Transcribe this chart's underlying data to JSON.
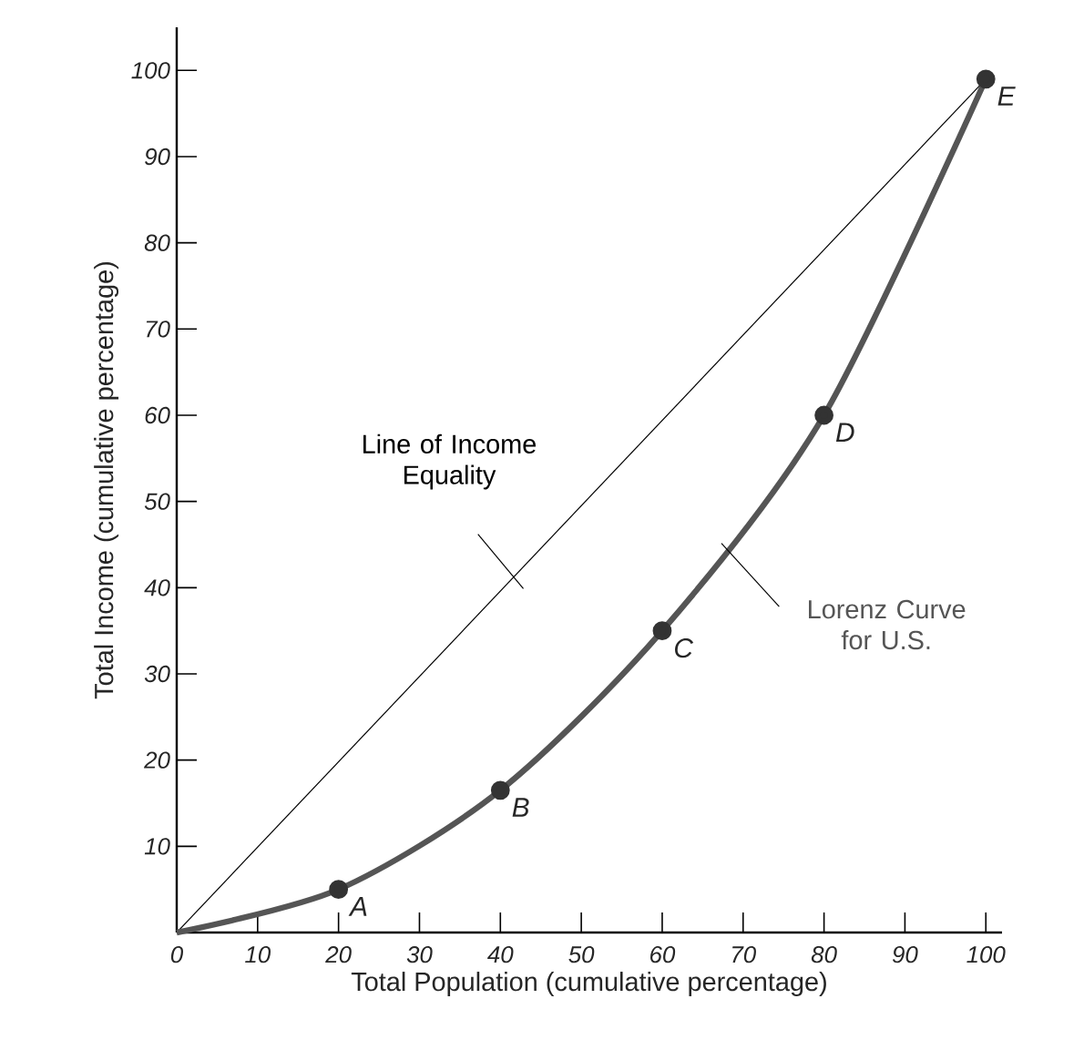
{
  "chart_data": {
    "type": "line",
    "xlabel": "Total Population (cumulative percentage)",
    "ylabel": "Total Income (cumulative percentage)",
    "xlim": [
      0,
      102
    ],
    "ylim": [
      0,
      105
    ],
    "xticks": [
      0,
      10,
      20,
      30,
      40,
      50,
      60,
      70,
      80,
      90,
      100
    ],
    "yticks": [
      10,
      20,
      30,
      40,
      50,
      60,
      70,
      80,
      90,
      100
    ],
    "series": [
      {
        "name": "Line of Income Equality",
        "color": "#000000",
        "x": [
          0,
          100
        ],
        "values": [
          0,
          99
        ]
      },
      {
        "name": "Lorenz Curve for U.S.",
        "color": "#555555",
        "x": [
          0,
          20,
          40,
          60,
          80,
          100
        ],
        "values": [
          0,
          5,
          16.5,
          35,
          60,
          99
        ],
        "marker": "circle"
      }
    ],
    "annotations": [
      {
        "text": "A",
        "x": 20,
        "y": 5
      },
      {
        "text": "B",
        "x": 40,
        "y": 16.5
      },
      {
        "text": "C",
        "x": 60,
        "y": 35
      },
      {
        "text": "D",
        "x": 80,
        "y": 60
      },
      {
        "text": "E",
        "x": 100,
        "y": 99
      }
    ],
    "grid": false
  }
}
